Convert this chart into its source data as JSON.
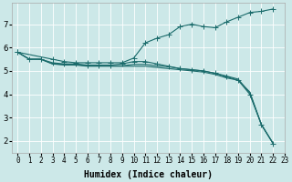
{
  "background_color": "#cce8e8",
  "grid_color": "#ffffff",
  "line_color": "#1a6b6b",
  "marker_style": "+",
  "marker_size": 4,
  "linewidth": 0.8,
  "xlabel": "Humidex (Indice chaleur)",
  "xlabel_fontsize": 7,
  "xtick_fontsize": 5.5,
  "ytick_fontsize": 6.5,
  "xlim": [
    -0.5,
    23
  ],
  "ylim": [
    1.5,
    7.9
  ],
  "yticks": [
    2,
    3,
    4,
    5,
    6,
    7
  ],
  "xticks": [
    0,
    1,
    2,
    3,
    4,
    5,
    6,
    7,
    8,
    9,
    10,
    11,
    12,
    13,
    14,
    15,
    16,
    17,
    18,
    19,
    20,
    21,
    22,
    23
  ],
  "series": [
    {
      "x": [
        0,
        3,
        4,
        5,
        6,
        7,
        8,
        9,
        10,
        11,
        12,
        13,
        14,
        15,
        16,
        17,
        18,
        19,
        20,
        21,
        22
      ],
      "y": [
        5.8,
        5.5,
        5.4,
        5.35,
        5.35,
        5.35,
        5.35,
        5.35,
        5.55,
        6.2,
        6.4,
        6.55,
        6.9,
        7.0,
        6.9,
        6.85,
        7.1,
        7.3,
        7.5,
        7.55,
        7.65
      ],
      "has_markers": true
    },
    {
      "x": [
        0,
        1,
        2,
        3,
        4,
        5,
        6,
        7,
        8,
        9,
        10,
        11,
        12,
        13,
        14,
        15,
        16,
        17,
        18,
        19,
        20,
        21,
        22
      ],
      "y": [
        5.8,
        5.5,
        5.5,
        5.35,
        5.3,
        5.3,
        5.25,
        5.25,
        5.25,
        5.3,
        5.4,
        5.4,
        5.3,
        5.2,
        5.1,
        5.05,
        5.0,
        4.9,
        4.75,
        4.6,
        4.0,
        2.7,
        1.9
      ],
      "has_markers": true
    },
    {
      "x": [
        0,
        1,
        2,
        3,
        4,
        5,
        6,
        7,
        8,
        9,
        10,
        11,
        12,
        13,
        14,
        15,
        16,
        17,
        18,
        19,
        20,
        21,
        22
      ],
      "y": [
        5.8,
        5.5,
        5.5,
        5.3,
        5.25,
        5.25,
        5.2,
        5.2,
        5.2,
        5.2,
        5.2,
        5.2,
        5.15,
        5.1,
        5.05,
        5.0,
        4.95,
        4.85,
        4.7,
        4.6,
        4.1,
        2.7,
        1.9
      ],
      "has_markers": false
    },
    {
      "x": [
        0,
        1,
        2,
        3,
        4,
        5,
        6,
        7,
        8,
        9,
        10,
        11,
        12,
        13,
        14,
        15,
        16,
        17,
        18,
        19,
        20,
        21,
        22
      ],
      "y": [
        5.8,
        5.5,
        5.5,
        5.3,
        5.28,
        5.28,
        5.22,
        5.22,
        5.22,
        5.22,
        5.28,
        5.28,
        5.22,
        5.18,
        5.1,
        5.05,
        5.0,
        4.9,
        4.78,
        4.65,
        4.05,
        2.7,
        1.9
      ],
      "has_markers": false
    }
  ]
}
